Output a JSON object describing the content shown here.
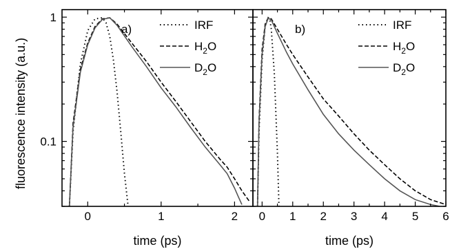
{
  "chart_data": [
    {
      "type": "line",
      "panel_label": "a)",
      "xlabel": "time (ps)",
      "ylabel": "fluorescence intensity (a.u.)",
      "yscale": "log",
      "xlim": [
        -0.35,
        2.25
      ],
      "ylim": [
        0.03,
        1.15
      ],
      "x_ticks": [
        0,
        1,
        2
      ],
      "y_ticks": [
        0.1,
        1
      ],
      "legend_position": "top-right",
      "legend": [
        {
          "label": "IRF",
          "base": "IRF",
          "sub": "",
          "post": "",
          "style": "dotted"
        },
        {
          "label": "H2O",
          "base": "H",
          "sub": "2",
          "post": "O",
          "style": "dashed"
        },
        {
          "label": "D2O",
          "base": "D",
          "sub": "2",
          "post": "O",
          "style": "solid"
        }
      ],
      "series": [
        {
          "name": "IRF",
          "style": "dotted",
          "x": [
            -0.25,
            -0.2,
            -0.1,
            0.0,
            0.1,
            0.2,
            0.25,
            0.3,
            0.35,
            0.4,
            0.45,
            0.5,
            0.55
          ],
          "y": [
            0.03,
            0.12,
            0.42,
            0.78,
            0.97,
            0.99,
            0.9,
            0.7,
            0.45,
            0.25,
            0.12,
            0.055,
            0.03
          ]
        },
        {
          "name": "H2O",
          "style": "dashed",
          "x": [
            -0.25,
            -0.2,
            -0.1,
            0.0,
            0.1,
            0.2,
            0.3,
            0.4,
            0.6,
            0.8,
            1.0,
            1.2,
            1.4,
            1.6,
            1.8,
            1.9,
            2.0,
            2.1,
            2.2
          ],
          "y": [
            0.03,
            0.14,
            0.38,
            0.62,
            0.84,
            0.97,
            0.99,
            0.88,
            0.62,
            0.44,
            0.3,
            0.21,
            0.145,
            0.1,
            0.072,
            0.062,
            0.05,
            0.04,
            0.033
          ]
        },
        {
          "name": "D2O",
          "style": "solid",
          "x": [
            -0.25,
            -0.2,
            -0.1,
            0.0,
            0.1,
            0.2,
            0.3,
            0.4,
            0.6,
            0.8,
            1.0,
            1.2,
            1.4,
            1.6,
            1.8,
            1.9,
            2.0,
            2.05,
            2.1
          ],
          "y": [
            0.03,
            0.13,
            0.36,
            0.6,
            0.82,
            0.96,
            0.99,
            0.86,
            0.58,
            0.4,
            0.27,
            0.19,
            0.13,
            0.09,
            0.065,
            0.055,
            0.042,
            0.036,
            0.031
          ]
        }
      ]
    },
    {
      "type": "line",
      "panel_label": "b)",
      "xlabel": "time (ps)",
      "yscale": "log",
      "xlim": [
        -0.3,
        6.0
      ],
      "ylim": [
        0.03,
        1.15
      ],
      "x_ticks": [
        0,
        1,
        2,
        3,
        4,
        5,
        6
      ],
      "legend_position": "top-right",
      "legend": [
        {
          "label": "IRF",
          "base": "IRF",
          "sub": "",
          "post": "",
          "style": "dotted"
        },
        {
          "label": "H2O",
          "base": "H",
          "sub": "2",
          "post": "O",
          "style": "dashed"
        },
        {
          "label": "D2O",
          "base": "D",
          "sub": "2",
          "post": "O",
          "style": "solid"
        }
      ],
      "series": [
        {
          "name": "IRF",
          "style": "dotted",
          "x": [
            -0.15,
            -0.1,
            0.0,
            0.1,
            0.2,
            0.25,
            0.3,
            0.4,
            0.5,
            0.55
          ],
          "y": [
            0.03,
            0.12,
            0.45,
            0.85,
            0.99,
            0.97,
            0.8,
            0.35,
            0.08,
            0.03
          ]
        },
        {
          "name": "H2O",
          "style": "dashed",
          "x": [
            -0.15,
            -0.1,
            0.0,
            0.1,
            0.2,
            0.3,
            0.5,
            0.8,
            1.0,
            1.5,
            2.0,
            2.5,
            3.0,
            3.5,
            4.0,
            4.5,
            5.0,
            5.5,
            6.0
          ],
          "y": [
            0.03,
            0.15,
            0.55,
            0.88,
            0.99,
            0.97,
            0.8,
            0.6,
            0.5,
            0.33,
            0.22,
            0.16,
            0.115,
            0.085,
            0.065,
            0.05,
            0.04,
            0.034,
            0.031
          ]
        },
        {
          "name": "D2O",
          "style": "solid",
          "x": [
            -0.15,
            -0.1,
            0.0,
            0.1,
            0.2,
            0.3,
            0.5,
            0.8,
            1.0,
            1.5,
            2.0,
            2.5,
            3.0,
            3.5,
            4.0,
            4.5,
            5.0,
            5.5,
            5.8
          ],
          "y": [
            0.03,
            0.14,
            0.5,
            0.84,
            0.98,
            0.95,
            0.74,
            0.52,
            0.42,
            0.26,
            0.165,
            0.115,
            0.085,
            0.065,
            0.05,
            0.04,
            0.034,
            0.031,
            0.03
          ]
        }
      ]
    }
  ]
}
